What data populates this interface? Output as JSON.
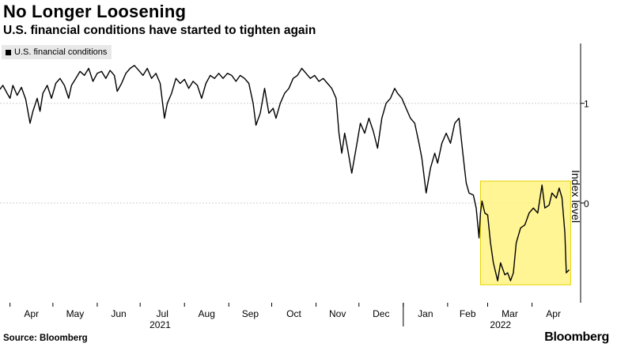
{
  "header": {
    "title": "No Longer Loosening",
    "subtitle": "U.S. financial conditions have started to tighten again"
  },
  "footer": {
    "source": "Source: Bloomberg",
    "brand": "Bloomberg"
  },
  "colors": {
    "line": "#000000",
    "highlight_fill": "#fff27a",
    "highlight_stroke": "#e6d200",
    "grid": "#d0d0d0",
    "legend_bg": "#e8e8e8"
  },
  "chart_data": {
    "type": "line",
    "ylabel": "Index level",
    "ylim": [
      -1.0,
      1.6
    ],
    "yticks": [
      {
        "value": 1,
        "label": "1"
      },
      {
        "value": 0,
        "label": "0"
      }
    ],
    "grid": true,
    "legend": "top-left",
    "x_range": [
      "2021-03-25",
      "2022-05-05"
    ],
    "month_labels": [
      {
        "date": "2021-04-01",
        "label": "Apr"
      },
      {
        "date": "2021-05-01",
        "label": "May"
      },
      {
        "date": "2021-06-01",
        "label": "Jun"
      },
      {
        "date": "2021-07-01",
        "label": "Jul"
      },
      {
        "date": "2021-08-01",
        "label": "Aug"
      },
      {
        "date": "2021-09-01",
        "label": "Sep"
      },
      {
        "date": "2021-10-01",
        "label": "Oct"
      },
      {
        "date": "2021-11-01",
        "label": "Nov"
      },
      {
        "date": "2021-12-01",
        "label": "Dec"
      },
      {
        "date": "2022-01-01",
        "label": "Jan"
      },
      {
        "date": "2022-02-01",
        "label": "Feb"
      },
      {
        "date": "2022-03-01",
        "label": "Mar"
      },
      {
        "date": "2022-04-01",
        "label": "Apr"
      }
    ],
    "year_labels": [
      {
        "date": "2021-07-15",
        "label": "2021"
      },
      {
        "date": "2022-03-10",
        "label": "2022"
      }
    ],
    "highlight": {
      "x_start": "2022-02-24",
      "x_end": "2022-04-28",
      "y_low": -0.82,
      "y_high": 0.22
    },
    "series": [
      {
        "name": "U.S. financial conditions",
        "points": [
          [
            "2021-03-25",
            1.14
          ],
          [
            "2021-03-27",
            1.18
          ],
          [
            "2021-03-30",
            1.1
          ],
          [
            "2021-04-01",
            1.05
          ],
          [
            "2021-04-03",
            1.18
          ],
          [
            "2021-04-06",
            1.08
          ],
          [
            "2021-04-09",
            1.16
          ],
          [
            "2021-04-12",
            1.04
          ],
          [
            "2021-04-15",
            0.8
          ],
          [
            "2021-04-17",
            0.92
          ],
          [
            "2021-04-20",
            1.05
          ],
          [
            "2021-04-22",
            0.92
          ],
          [
            "2021-04-24",
            1.1
          ],
          [
            "2021-04-27",
            1.18
          ],
          [
            "2021-04-30",
            1.05
          ],
          [
            "2021-05-03",
            1.2
          ],
          [
            "2021-05-06",
            1.25
          ],
          [
            "2021-05-09",
            1.18
          ],
          [
            "2021-05-12",
            1.05
          ],
          [
            "2021-05-14",
            1.18
          ],
          [
            "2021-05-17",
            1.25
          ],
          [
            "2021-05-20",
            1.32
          ],
          [
            "2021-05-23",
            1.28
          ],
          [
            "2021-05-26",
            1.35
          ],
          [
            "2021-05-29",
            1.22
          ],
          [
            "2021-06-01",
            1.3
          ],
          [
            "2021-06-04",
            1.32
          ],
          [
            "2021-06-07",
            1.25
          ],
          [
            "2021-06-10",
            1.33
          ],
          [
            "2021-06-13",
            1.28
          ],
          [
            "2021-06-15",
            1.12
          ],
          [
            "2021-06-18",
            1.2
          ],
          [
            "2021-06-21",
            1.3
          ],
          [
            "2021-06-24",
            1.35
          ],
          [
            "2021-06-27",
            1.38
          ],
          [
            "2021-06-30",
            1.33
          ],
          [
            "2021-07-03",
            1.28
          ],
          [
            "2021-07-06",
            1.35
          ],
          [
            "2021-07-09",
            1.25
          ],
          [
            "2021-07-12",
            1.3
          ],
          [
            "2021-07-15",
            1.2
          ],
          [
            "2021-07-18",
            0.85
          ],
          [
            "2021-07-20",
            1.0
          ],
          [
            "2021-07-23",
            1.1
          ],
          [
            "2021-07-26",
            1.25
          ],
          [
            "2021-07-29",
            1.2
          ],
          [
            "2021-08-01",
            1.24
          ],
          [
            "2021-08-04",
            1.15
          ],
          [
            "2021-08-07",
            1.22
          ],
          [
            "2021-08-10",
            1.18
          ],
          [
            "2021-08-13",
            1.05
          ],
          [
            "2021-08-16",
            1.2
          ],
          [
            "2021-08-19",
            1.28
          ],
          [
            "2021-08-22",
            1.25
          ],
          [
            "2021-08-25",
            1.3
          ],
          [
            "2021-08-28",
            1.25
          ],
          [
            "2021-08-31",
            1.3
          ],
          [
            "2021-09-03",
            1.28
          ],
          [
            "2021-09-06",
            1.22
          ],
          [
            "2021-09-09",
            1.28
          ],
          [
            "2021-09-12",
            1.25
          ],
          [
            "2021-09-15",
            1.2
          ],
          [
            "2021-09-18",
            1.0
          ],
          [
            "2021-09-20",
            0.78
          ],
          [
            "2021-09-23",
            0.9
          ],
          [
            "2021-09-26",
            1.15
          ],
          [
            "2021-09-29",
            0.9
          ],
          [
            "2021-10-02",
            0.95
          ],
          [
            "2021-10-04",
            0.85
          ],
          [
            "2021-10-07",
            1.0
          ],
          [
            "2021-10-10",
            1.1
          ],
          [
            "2021-10-13",
            1.15
          ],
          [
            "2021-10-16",
            1.25
          ],
          [
            "2021-10-19",
            1.28
          ],
          [
            "2021-10-22",
            1.35
          ],
          [
            "2021-10-25",
            1.3
          ],
          [
            "2021-10-28",
            1.25
          ],
          [
            "2021-10-31",
            1.28
          ],
          [
            "2021-11-03",
            1.22
          ],
          [
            "2021-11-06",
            1.25
          ],
          [
            "2021-11-09",
            1.2
          ],
          [
            "2021-11-12",
            1.15
          ],
          [
            "2021-11-15",
            1.05
          ],
          [
            "2021-11-17",
            0.7
          ],
          [
            "2021-11-19",
            0.5
          ],
          [
            "2021-11-21",
            0.7
          ],
          [
            "2021-11-23",
            0.55
          ],
          [
            "2021-11-26",
            0.3
          ],
          [
            "2021-11-29",
            0.55
          ],
          [
            "2021-12-02",
            0.8
          ],
          [
            "2021-12-05",
            0.7
          ],
          [
            "2021-12-08",
            0.85
          ],
          [
            "2021-12-11",
            0.72
          ],
          [
            "2021-12-14",
            0.55
          ],
          [
            "2021-12-17",
            0.85
          ],
          [
            "2021-12-20",
            1.0
          ],
          [
            "2021-12-23",
            1.05
          ],
          [
            "2021-12-26",
            1.15
          ],
          [
            "2021-12-28",
            1.1
          ],
          [
            "2021-12-31",
            1.05
          ],
          [
            "2022-01-03",
            0.95
          ],
          [
            "2022-01-06",
            0.85
          ],
          [
            "2022-01-09",
            0.8
          ],
          [
            "2022-01-12",
            0.6
          ],
          [
            "2022-01-14",
            0.45
          ],
          [
            "2022-01-17",
            0.1
          ],
          [
            "2022-01-20",
            0.35
          ],
          [
            "2022-01-23",
            0.5
          ],
          [
            "2022-01-25",
            0.4
          ],
          [
            "2022-01-28",
            0.6
          ],
          [
            "2022-01-31",
            0.7
          ],
          [
            "2022-02-03",
            0.6
          ],
          [
            "2022-02-06",
            0.8
          ],
          [
            "2022-02-09",
            0.85
          ],
          [
            "2022-02-12",
            0.45
          ],
          [
            "2022-02-14",
            0.2
          ],
          [
            "2022-02-16",
            0.1
          ],
          [
            "2022-02-19",
            0.08
          ],
          [
            "2022-02-21",
            -0.05
          ],
          [
            "2022-02-23",
            -0.35
          ],
          [
            "2022-02-24",
            -0.1
          ],
          [
            "2022-02-25",
            0.02
          ],
          [
            "2022-02-27",
            -0.1
          ],
          [
            "2022-03-01",
            -0.12
          ],
          [
            "2022-03-03",
            -0.4
          ],
          [
            "2022-03-05",
            -0.6
          ],
          [
            "2022-03-08",
            -0.78
          ],
          [
            "2022-03-10",
            -0.6
          ],
          [
            "2022-03-13",
            -0.72
          ],
          [
            "2022-03-15",
            -0.7
          ],
          [
            "2022-03-17",
            -0.78
          ],
          [
            "2022-03-19",
            -0.7
          ],
          [
            "2022-03-21",
            -0.4
          ],
          [
            "2022-03-24",
            -0.25
          ],
          [
            "2022-03-27",
            -0.22
          ],
          [
            "2022-03-30",
            -0.1
          ],
          [
            "2022-04-02",
            -0.05
          ],
          [
            "2022-04-05",
            -0.1
          ],
          [
            "2022-04-08",
            0.18
          ],
          [
            "2022-04-10",
            -0.05
          ],
          [
            "2022-04-13",
            -0.02
          ],
          [
            "2022-04-15",
            0.1
          ],
          [
            "2022-04-18",
            0.05
          ],
          [
            "2022-04-20",
            0.15
          ],
          [
            "2022-04-22",
            0.05
          ],
          [
            "2022-04-24",
            -0.3
          ],
          [
            "2022-04-25",
            -0.7
          ],
          [
            "2022-04-27",
            -0.67
          ]
        ]
      }
    ]
  }
}
